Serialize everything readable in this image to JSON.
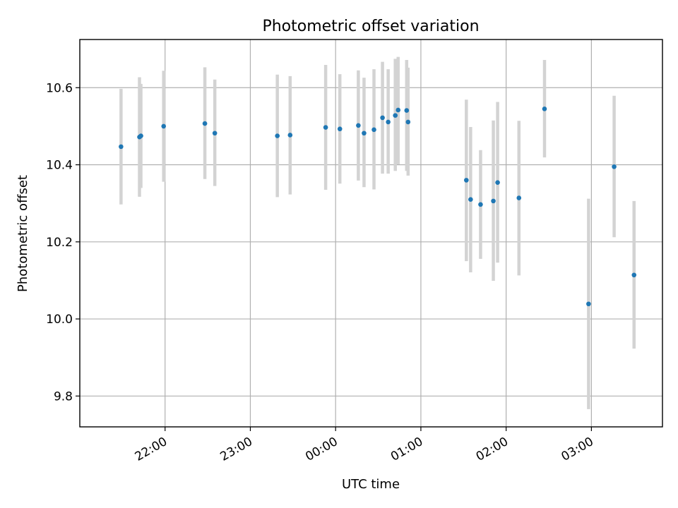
{
  "chart_data": {
    "type": "scatter",
    "title": "Photometric offset variation",
    "xlabel": "UTC time",
    "ylabel": "Photometric offset",
    "x_axis_type": "time",
    "xlim": [
      "21:00",
      "03:50"
    ],
    "ylim": [
      9.72,
      10.725
    ],
    "x_ticks": [
      "22:00",
      "23:00",
      "00:00",
      "01:00",
      "02:00",
      "03:00"
    ],
    "y_ticks": [
      9.8,
      10.0,
      10.2,
      10.4,
      10.6
    ],
    "y_tick_labels": [
      "9.8",
      "10.0",
      "10.2",
      "10.4",
      "10.6"
    ],
    "grid": true,
    "colors": {
      "point": "#1f77b4",
      "errorbar": "#d3d3d3",
      "grid": "#b0b0b0"
    },
    "points": [
      {
        "x": "21:29",
        "y": 10.447,
        "ylow": 10.297,
        "yhigh": 10.597
      },
      {
        "x": "21:42",
        "y": 10.472,
        "ylow": 10.317,
        "yhigh": 10.627
      },
      {
        "x": "21:43",
        "y": 10.475,
        "ylow": 10.34,
        "yhigh": 10.61
      },
      {
        "x": "21:59",
        "y": 10.5,
        "ylow": 10.356,
        "yhigh": 10.644
      },
      {
        "x": "22:28",
        "y": 10.507,
        "ylow": 10.363,
        "yhigh": 10.653
      },
      {
        "x": "22:35",
        "y": 10.482,
        "ylow": 10.345,
        "yhigh": 10.621
      },
      {
        "x": "23:19",
        "y": 10.475,
        "ylow": 10.316,
        "yhigh": 10.634
      },
      {
        "x": "23:28",
        "y": 10.477,
        "ylow": 10.323,
        "yhigh": 10.63
      },
      {
        "x": "23:53",
        "y": 10.497,
        "ylow": 10.335,
        "yhigh": 10.659
      },
      {
        "x": "00:03",
        "y": 10.493,
        "ylow": 10.351,
        "yhigh": 10.635
      },
      {
        "x": "00:16",
        "y": 10.502,
        "ylow": 10.359,
        "yhigh": 10.645
      },
      {
        "x": "00:20",
        "y": 10.482,
        "ylow": 10.342,
        "yhigh": 10.626
      },
      {
        "x": "00:27",
        "y": 10.491,
        "ylow": 10.336,
        "yhigh": 10.648
      },
      {
        "x": "00:33",
        "y": 10.522,
        "ylow": 10.377,
        "yhigh": 10.667
      },
      {
        "x": "00:37",
        "y": 10.511,
        "ylow": 10.377,
        "yhigh": 10.648
      },
      {
        "x": "00:42",
        "y": 10.528,
        "ylow": 10.384,
        "yhigh": 10.675
      },
      {
        "x": "00:44",
        "y": 10.542,
        "ylow": 10.401,
        "yhigh": 10.68
      },
      {
        "x": "00:50",
        "y": 10.541,
        "ylow": 10.384,
        "yhigh": 10.672
      },
      {
        "x": "00:51",
        "y": 10.511,
        "ylow": 10.372,
        "yhigh": 10.652
      },
      {
        "x": "01:32",
        "y": 10.36,
        "ylow": 10.15,
        "yhigh": 10.569
      },
      {
        "x": "01:35",
        "y": 10.31,
        "ylow": 10.121,
        "yhigh": 10.498
      },
      {
        "x": "01:42",
        "y": 10.297,
        "ylow": 10.156,
        "yhigh": 10.438
      },
      {
        "x": "01:51",
        "y": 10.306,
        "ylow": 10.099,
        "yhigh": 10.515
      },
      {
        "x": "01:54",
        "y": 10.354,
        "ylow": 10.146,
        "yhigh": 10.563
      },
      {
        "x": "02:09",
        "y": 10.314,
        "ylow": 10.113,
        "yhigh": 10.514
      },
      {
        "x": "02:27",
        "y": 10.545,
        "ylow": 10.419,
        "yhigh": 10.672
      },
      {
        "x": "02:58",
        "y": 10.039,
        "ylow": 9.766,
        "yhigh": 10.312
      },
      {
        "x": "03:16",
        "y": 10.395,
        "ylow": 10.212,
        "yhigh": 10.579
      },
      {
        "x": "03:30",
        "y": 10.114,
        "ylow": 9.923,
        "yhigh": 10.306
      }
    ]
  }
}
